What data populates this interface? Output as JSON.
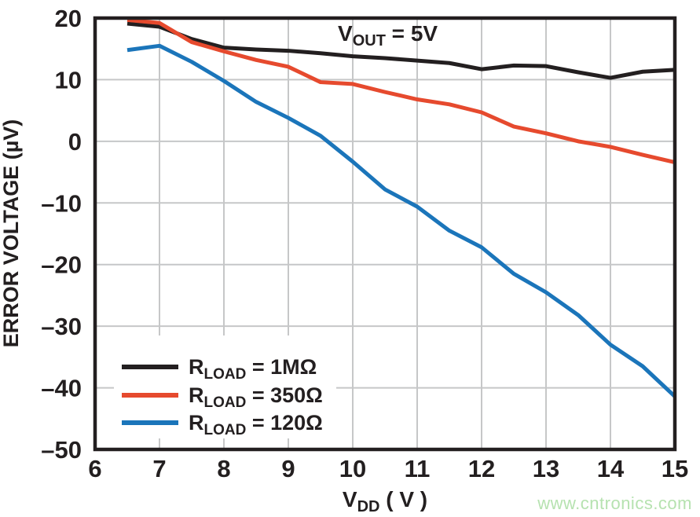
{
  "figure": {
    "background": "#ffffff",
    "watermark": {
      "text": "www.cntronics.com",
      "color": "#b6e2b0"
    }
  },
  "chart_data": {
    "type": "line",
    "annotation": {
      "pre": "V",
      "sub": "OUT",
      "post": " = 5V"
    },
    "xlabel": {
      "pre": "V",
      "sub": "DD",
      "post": " ( V )"
    },
    "ylabel": "ERROR VOLTAGE (µV)",
    "xlim": [
      6,
      15
    ],
    "ylim": [
      -50,
      20
    ],
    "x_ticks": [
      6,
      7,
      8,
      9,
      10,
      11,
      12,
      13,
      14,
      15
    ],
    "x_tick_labels": [
      "6",
      "7",
      "8",
      "9",
      "10",
      "11",
      "12",
      "13",
      "14",
      "15"
    ],
    "y_ticks": [
      20,
      10,
      0,
      -10,
      -20,
      -30,
      -40,
      -50
    ],
    "y_tick_labels": [
      "20",
      "10",
      "0",
      "–10",
      "–20",
      "–30",
      "–40",
      "–50"
    ],
    "grid": true,
    "grid_color": "#c6c7c8",
    "frame_color": "#231f20",
    "legend_position": "lower-left",
    "x": [
      6.5,
      7,
      7.5,
      8,
      8.5,
      9,
      9.5,
      10,
      10.5,
      11,
      11.5,
      12,
      12.5,
      13,
      13.5,
      14,
      14.5,
      15
    ],
    "series": [
      {
        "id": "rload-1m",
        "label_pre": "R",
        "label_sub": "LOAD",
        "label_post": " = 1MΩ",
        "color": "#231f20",
        "values": [
          19.1,
          18.6,
          16.6,
          15.2,
          14.9,
          14.7,
          14.3,
          13.8,
          13.5,
          13.1,
          12.7,
          11.7,
          12.3,
          12.2,
          11.2,
          10.3,
          11.3,
          11.6
        ]
      },
      {
        "id": "rload-350",
        "label_pre": "R",
        "label_sub": "LOAD",
        "label_post": " = 350Ω",
        "color": "#e64a2e",
        "values": [
          19.7,
          19.2,
          16.1,
          14.6,
          13.2,
          12.1,
          9.6,
          9.3,
          8.0,
          6.8,
          6.0,
          4.7,
          2.4,
          1.3,
          0.0,
          -0.9,
          -2.2,
          -3.4
        ]
      },
      {
        "id": "rload-120",
        "label_pre": "R",
        "label_sub": "LOAD",
        "label_post": " = 120Ω",
        "color": "#1b75ba",
        "values": [
          14.8,
          15.5,
          12.9,
          9.8,
          6.4,
          3.8,
          0.9,
          -3.3,
          -7.8,
          -10.6,
          -14.5,
          -17.2,
          -21.5,
          -24.5,
          -28.2,
          -33.0,
          -36.5,
          -41.4
        ]
      }
    ]
  }
}
